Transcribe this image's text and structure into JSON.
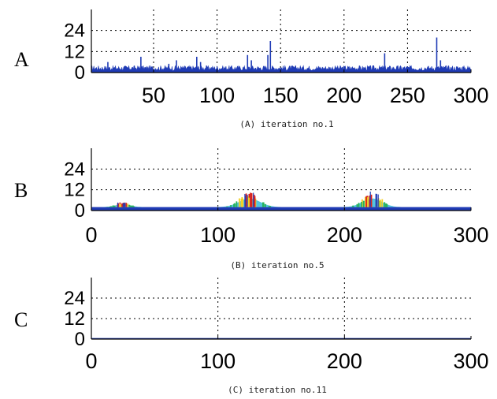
{
  "chart_data": [
    {
      "type": "bar",
      "panel_label": "A",
      "caption": "(A) iteration no.1",
      "xlim": [
        1,
        300
      ],
      "ylim": [
        0,
        36
      ],
      "xticks": [
        50,
        100,
        150,
        200,
        250,
        300
      ],
      "yticks": [
        0,
        12,
        24
      ],
      "grid": true,
      "spikes": [
        {
          "x": 14,
          "y": 6
        },
        {
          "x": 40,
          "y": 9
        },
        {
          "x": 62,
          "y": 5
        },
        {
          "x": 68,
          "y": 7
        },
        {
          "x": 84,
          "y": 9
        },
        {
          "x": 87,
          "y": 6
        },
        {
          "x": 124,
          "y": 10
        },
        {
          "x": 127,
          "y": 7
        },
        {
          "x": 140,
          "y": 10
        },
        {
          "x": 142,
          "y": 18
        },
        {
          "x": 232,
          "y": 11
        },
        {
          "x": 273,
          "y": 20
        },
        {
          "x": 276,
          "y": 7
        }
      ],
      "baseline_level": 2.5,
      "baseline_noise": 1.5
    },
    {
      "type": "area",
      "panel_label": "B",
      "caption": "(B) iteration no.5",
      "xlim": [
        0,
        300
      ],
      "ylim": [
        0,
        36
      ],
      "xticks": [
        0,
        100,
        200,
        300
      ],
      "yticks": [
        0,
        12,
        24
      ],
      "grid": true,
      "bumps": [
        {
          "center": 25,
          "width": 18,
          "height": 3
        },
        {
          "center": 125,
          "width": 26,
          "height": 9
        },
        {
          "center": 222,
          "width": 24,
          "height": 9
        }
      ],
      "baseline_level": 2
    },
    {
      "type": "line",
      "panel_label": "C",
      "caption": "(C) iteration no.11",
      "xlim": [
        0,
        300
      ],
      "ylim": [
        0,
        36
      ],
      "xticks": [
        0,
        100,
        200,
        300
      ],
      "yticks": [
        0,
        12,
        24
      ],
      "grid": true,
      "baseline_level": 0.6
    }
  ],
  "colors": {
    "series_blue": "#1f3bb5",
    "peak_green": "#29b45a",
    "peak_yellow": "#f2d027",
    "peak_red": "#d8231f",
    "peak_cyan": "#27b6d8"
  }
}
